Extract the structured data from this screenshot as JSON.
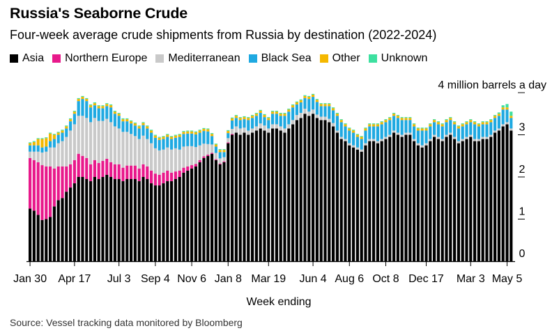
{
  "title": "Russia's Seaborne Crude",
  "subtitle": "Four-week average crude shipments from Russia by destination (2022-2024)",
  "source": "Source: Vessel tracking data monitored by Bloomberg",
  "chart_data": {
    "type": "bar",
    "stacked": true,
    "xlabel": "Week ending",
    "ylabel": "4 million barrels a day",
    "ylim": [
      0,
      4
    ],
    "yticks": [
      0,
      1,
      2,
      3
    ],
    "grid": false,
    "legend_position": "top",
    "x_tick_labels": [
      {
        "index": 0,
        "label": "Jan 30"
      },
      {
        "index": 11,
        "label": "Apr 17"
      },
      {
        "index": 22,
        "label": "Jul 3"
      },
      {
        "index": 31,
        "label": "Sep 4"
      },
      {
        "index": 40,
        "label": "Nov 6"
      },
      {
        "index": 49,
        "label": "Jan 8"
      },
      {
        "index": 59,
        "label": "Mar 19"
      },
      {
        "index": 70,
        "label": "Jun 4"
      },
      {
        "index": 79,
        "label": "Aug 6"
      },
      {
        "index": 88,
        "label": "Oct 8"
      },
      {
        "index": 98,
        "label": "Dec 17"
      },
      {
        "index": 109,
        "label": "Mar 3"
      },
      {
        "index": 118,
        "label": "May 5"
      }
    ],
    "colors": {
      "Asia": "#000000",
      "Northern Europe": "#e8198b",
      "Mediterranean": "#c9c9c9",
      "Black Sea": "#1fa9e1",
      "Other": "#f5b800",
      "Unknown": "#3de0a0"
    },
    "series": [
      {
        "name": "Asia",
        "values": [
          1.25,
          1.2,
          1.1,
          0.98,
          1.0,
          1.05,
          1.3,
          1.45,
          1.5,
          1.65,
          1.75,
          1.85,
          2.0,
          2.0,
          1.95,
          1.9,
          2.0,
          1.95,
          2.0,
          2.05,
          2.0,
          1.95,
          1.95,
          1.9,
          1.95,
          1.95,
          1.95,
          1.9,
          2.0,
          1.95,
          1.85,
          1.8,
          1.8,
          1.85,
          1.9,
          1.9,
          1.95,
          2.0,
          2.1,
          2.15,
          2.2,
          2.25,
          2.35,
          2.45,
          2.5,
          2.55,
          2.4,
          2.3,
          2.35,
          2.8,
          3.0,
          3.05,
          3.0,
          3.05,
          3.0,
          3.05,
          3.1,
          3.15,
          3.1,
          3.05,
          3.15,
          3.15,
          3.1,
          3.05,
          3.15,
          3.25,
          3.35,
          3.4,
          3.5,
          3.45,
          3.5,
          3.4,
          3.35,
          3.35,
          3.3,
          3.2,
          3.05,
          2.9,
          2.85,
          2.75,
          2.7,
          2.65,
          2.6,
          2.75,
          2.85,
          2.85,
          2.8,
          2.85,
          2.9,
          2.95,
          3.05,
          3.0,
          2.95,
          3.0,
          3.0,
          2.85,
          2.75,
          2.7,
          2.75,
          2.85,
          2.95,
          2.9,
          2.85,
          2.95,
          3.0,
          2.9,
          2.8,
          2.85,
          2.9,
          2.95,
          2.85,
          2.85,
          2.9,
          2.9,
          2.95,
          3.05,
          3.1,
          3.2,
          3.25,
          3.1
        ]
      },
      {
        "name": "Northern Europe",
        "values": [
          1.2,
          1.2,
          1.25,
          1.3,
          1.25,
          1.2,
          0.9,
          0.8,
          0.75,
          0.6,
          0.55,
          0.55,
          0.55,
          0.5,
          0.5,
          0.4,
          0.4,
          0.38,
          0.38,
          0.38,
          0.35,
          0.35,
          0.35,
          0.32,
          0.32,
          0.32,
          0.32,
          0.3,
          0.3,
          0.3,
          0.3,
          0.28,
          0.25,
          0.25,
          0.25,
          0.2,
          0.18,
          0.15,
          0.12,
          0.1,
          0.08,
          0.06,
          0.05,
          0.04,
          0.03,
          0.02,
          0.02,
          0.02,
          0.02,
          0.02,
          0.02,
          0,
          0,
          0,
          0,
          0,
          0,
          0,
          0,
          0,
          0,
          0,
          0,
          0,
          0,
          0,
          0,
          0,
          0,
          0,
          0,
          0,
          0,
          0,
          0,
          0,
          0,
          0,
          0,
          0,
          0,
          0,
          0,
          0,
          0,
          0,
          0,
          0,
          0,
          0,
          0,
          0,
          0,
          0,
          0,
          0,
          0,
          0,
          0,
          0,
          0,
          0,
          0,
          0,
          0,
          0,
          0,
          0,
          0,
          0,
          0,
          0,
          0,
          0,
          0,
          0,
          0,
          0,
          0,
          0
        ]
      },
      {
        "name": "Mediterranean",
        "values": [
          0.15,
          0.2,
          0.25,
          0.3,
          0.35,
          0.45,
          0.5,
          0.55,
          0.6,
          0.7,
          0.8,
          0.85,
          0.9,
          0.95,
          0.95,
          1.0,
          1.0,
          1.0,
          0.95,
          0.95,
          0.95,
          0.9,
          0.85,
          0.85,
          0.8,
          0.75,
          0.7,
          0.7,
          0.68,
          0.65,
          0.65,
          0.6,
          0.58,
          0.55,
          0.55,
          0.55,
          0.55,
          0.5,
          0.5,
          0.48,
          0.45,
          0.4,
          0.35,
          0.3,
          0.25,
          0.2,
          0.15,
          0.12,
          0.1,
          0.1,
          0.12,
          0.15,
          0.15,
          0.12,
          0.1,
          0.1,
          0.1,
          0.12,
          0.12,
          0.1,
          0.1,
          0.1,
          0.1,
          0.1,
          0.1,
          0.1,
          0.12,
          0.12,
          0.12,
          0.1,
          0.1,
          0.08,
          0.08,
          0.08,
          0.08,
          0.08,
          0.05,
          0.05,
          0.05,
          0.05,
          0.05,
          0.05,
          0.05,
          0.05,
          0.05,
          0.05,
          0.05,
          0.05,
          0.05,
          0.05,
          0.05,
          0.05,
          0.05,
          0.05,
          0.05,
          0.05,
          0.05,
          0.05,
          0.05,
          0.05,
          0.05,
          0.05,
          0.05,
          0.05,
          0.05,
          0.05,
          0.05,
          0.05,
          0.05,
          0.05,
          0.05,
          0.05,
          0.05,
          0.05,
          0.05,
          0.05,
          0.05,
          0.05,
          0.05,
          0.05
        ]
      },
      {
        "name": "Black Sea",
        "values": [
          0.15,
          0.15,
          0.15,
          0.12,
          0.12,
          0.15,
          0.2,
          0.2,
          0.2,
          0.2,
          0.22,
          0.25,
          0.35,
          0.4,
          0.4,
          0.35,
          0.3,
          0.3,
          0.3,
          0.3,
          0.35,
          0.3,
          0.3,
          0.25,
          0.25,
          0.25,
          0.25,
          0.25,
          0.25,
          0.25,
          0.25,
          0.25,
          0.25,
          0.25,
          0.25,
          0.25,
          0.25,
          0.3,
          0.3,
          0.3,
          0.3,
          0.3,
          0.3,
          0.3,
          0.3,
          0.2,
          0.15,
          0.15,
          0.12,
          0.12,
          0.2,
          0.2,
          0.2,
          0.2,
          0.25,
          0.25,
          0.25,
          0.25,
          0.2,
          0.2,
          0.25,
          0.25,
          0.25,
          0.3,
          0.3,
          0.3,
          0.25,
          0.25,
          0.25,
          0.3,
          0.3,
          0.3,
          0.25,
          0.25,
          0.3,
          0.3,
          0.35,
          0.35,
          0.3,
          0.3,
          0.3,
          0.25,
          0.25,
          0.3,
          0.3,
          0.3,
          0.35,
          0.35,
          0.35,
          0.35,
          0.35,
          0.35,
          0.35,
          0.3,
          0.3,
          0.3,
          0.3,
          0.35,
          0.3,
          0.3,
          0.3,
          0.3,
          0.3,
          0.3,
          0.3,
          0.3,
          0.3,
          0.3,
          0.3,
          0.3,
          0.35,
          0.3,
          0.3,
          0.3,
          0.3,
          0.3,
          0.3,
          0.35,
          0.3,
          0.25
        ]
      },
      {
        "name": "Other",
        "values": [
          0.05,
          0.08,
          0.15,
          0.2,
          0.2,
          0.18,
          0.1,
          0.05,
          0.05,
          0.05,
          0.05,
          0.05,
          0.05,
          0.05,
          0.05,
          0.05,
          0.05,
          0.05,
          0.05,
          0.05,
          0.05,
          0.05,
          0.05,
          0.05,
          0.05,
          0.05,
          0.05,
          0.05,
          0.05,
          0.05,
          0.05,
          0.05,
          0.05,
          0.05,
          0.05,
          0.05,
          0.05,
          0.05,
          0.05,
          0.05,
          0.05,
          0.05,
          0.05,
          0.05,
          0.05,
          0.05,
          0.05,
          0.05,
          0.05,
          0.05,
          0.05,
          0.05,
          0.05,
          0.05,
          0.05,
          0.05,
          0.05,
          0.05,
          0.05,
          0.05,
          0.05,
          0.05,
          0.05,
          0.05,
          0.05,
          0.05,
          0.05,
          0.05,
          0.05,
          0.05,
          0.05,
          0.05,
          0.05,
          0.05,
          0.05,
          0.05,
          0.05,
          0.05,
          0.05,
          0.05,
          0.05,
          0.05,
          0.05,
          0.05,
          0.05,
          0.05,
          0.05,
          0.05,
          0.05,
          0.05,
          0.05,
          0.05,
          0.05,
          0.05,
          0.05,
          0.05,
          0.05,
          0.05,
          0.05,
          0.05,
          0.05,
          0.05,
          0.05,
          0.05,
          0.05,
          0.05,
          0.05,
          0.05,
          0.05,
          0.05,
          0.05,
          0.05,
          0.05,
          0.05,
          0.05,
          0.05,
          0.05,
          0.05,
          0.05,
          0.05
        ]
      },
      {
        "name": "Unknown",
        "values": [
          0.02,
          0.02,
          0.02,
          0.02,
          0.02,
          0.02,
          0.02,
          0.02,
          0.02,
          0.02,
          0.02,
          0.02,
          0.02,
          0.02,
          0.02,
          0.02,
          0.02,
          0.02,
          0.02,
          0.02,
          0.02,
          0.02,
          0.02,
          0.02,
          0.02,
          0.02,
          0.02,
          0.02,
          0.02,
          0.02,
          0.02,
          0.02,
          0.02,
          0.02,
          0.02,
          0.02,
          0.02,
          0.02,
          0.02,
          0.02,
          0.02,
          0.02,
          0.02,
          0.02,
          0.02,
          0.02,
          0.02,
          0.02,
          0.02,
          0.02,
          0.02,
          0.02,
          0.02,
          0.02,
          0.02,
          0.02,
          0.02,
          0.02,
          0.02,
          0.02,
          0.02,
          0.02,
          0.02,
          0.02,
          0.02,
          0.02,
          0.02,
          0.02,
          0.02,
          0.02,
          0.02,
          0.02,
          0.02,
          0.02,
          0.02,
          0.02,
          0.02,
          0.02,
          0.02,
          0.02,
          0.02,
          0.02,
          0.02,
          0.02,
          0.02,
          0.02,
          0.02,
          0.02,
          0.02,
          0.02,
          0.02,
          0.02,
          0.02,
          0.02,
          0.02,
          0.02,
          0.02,
          0.02,
          0.02,
          0.02,
          0.02,
          0.02,
          0.02,
          0.02,
          0.02,
          0.02,
          0.02,
          0.02,
          0.02,
          0.02,
          0.02,
          0.02,
          0.02,
          0.02,
          0.02,
          0.02,
          0.03,
          0.05,
          0.08,
          0.1
        ]
      }
    ]
  }
}
